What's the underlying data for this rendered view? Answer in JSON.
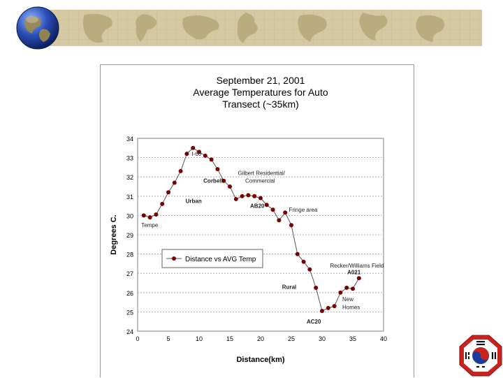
{
  "slide": {
    "accent_color": "#d4c9a2",
    "banner_icons": [
      "globe-icon"
    ],
    "corner_icon": "taegeuk-emblem-icon"
  },
  "chart_data": {
    "type": "line",
    "title": [
      "September 21, 2001",
      "Average Temperatures for Auto",
      "Transect (~35km)"
    ],
    "xlabel": "Distance(km)",
    "ylabel": "Degrees C.",
    "xlim": [
      0,
      40
    ],
    "ylim": [
      24,
      34
    ],
    "xticks": [
      0,
      5,
      10,
      15,
      20,
      25,
      30,
      35,
      40
    ],
    "yticks": [
      24,
      25,
      26,
      27,
      28,
      29,
      30,
      31,
      32,
      33,
      34
    ],
    "grid": true,
    "legend": {
      "position": "middle-left",
      "entries": [
        "Distance vs AVG Temp"
      ]
    },
    "series": [
      {
        "name": "Distance vs AVG Temp",
        "color": "#7a0000",
        "x": [
          1,
          2,
          3,
          4,
          5,
          6,
          7,
          8,
          9,
          10,
          11,
          12,
          13,
          14,
          15,
          16,
          17,
          18,
          19,
          20,
          21,
          22,
          23,
          24,
          25,
          26,
          27,
          28,
          29,
          30,
          31,
          32,
          33,
          34,
          35,
          36
        ],
        "y": [
          30.0,
          29.9,
          30.05,
          30.6,
          31.2,
          31.7,
          32.3,
          33.2,
          33.5,
          33.3,
          33.1,
          32.9,
          32.4,
          31.8,
          31.5,
          30.85,
          31.0,
          31.05,
          31.0,
          30.9,
          30.55,
          30.3,
          29.75,
          30.15,
          29.5,
          28.0,
          27.6,
          27.2,
          26.25,
          25.05,
          25.2,
          25.3,
          26.0,
          26.25,
          26.2,
          26.75
        ]
      }
    ],
    "annotations": [
      {
        "text": "I-60",
        "x": 8.8,
        "y": 33.1,
        "weight": "normal"
      },
      {
        "text": "Gilbert Residential/",
        "x": 16.3,
        "y": 32.1,
        "weight": "normal"
      },
      {
        "text": "Commercial",
        "x": 17.5,
        "y": 31.7,
        "weight": "normal"
      },
      {
        "text": "Corbell",
        "x": 10.7,
        "y": 31.7,
        "weight": "bold"
      },
      {
        "text": "Urban",
        "x": 7.8,
        "y": 30.65,
        "weight": "bold"
      },
      {
        "text": "AB20",
        "x": 18.3,
        "y": 30.4,
        "weight": "bold"
      },
      {
        "text": "Fringe area",
        "x": 24.6,
        "y": 30.2,
        "weight": "normal"
      },
      {
        "text": "Tempe",
        "x": 0.6,
        "y": 29.4,
        "weight": "normal"
      },
      {
        "text": "Recker/Williams Field",
        "x": 31.3,
        "y": 27.3,
        "weight": "normal"
      },
      {
        "text": "A021",
        "x": 34.1,
        "y": 26.95,
        "weight": "bold"
      },
      {
        "text": "Rural",
        "x": 23.5,
        "y": 26.2,
        "weight": "bold"
      },
      {
        "text": "New",
        "x": 33.3,
        "y": 25.55,
        "weight": "normal"
      },
      {
        "text": "Homes",
        "x": 33.3,
        "y": 25.15,
        "weight": "normal"
      },
      {
        "text": "AC20",
        "x": 27.5,
        "y": 24.4,
        "weight": "bold"
      }
    ]
  }
}
